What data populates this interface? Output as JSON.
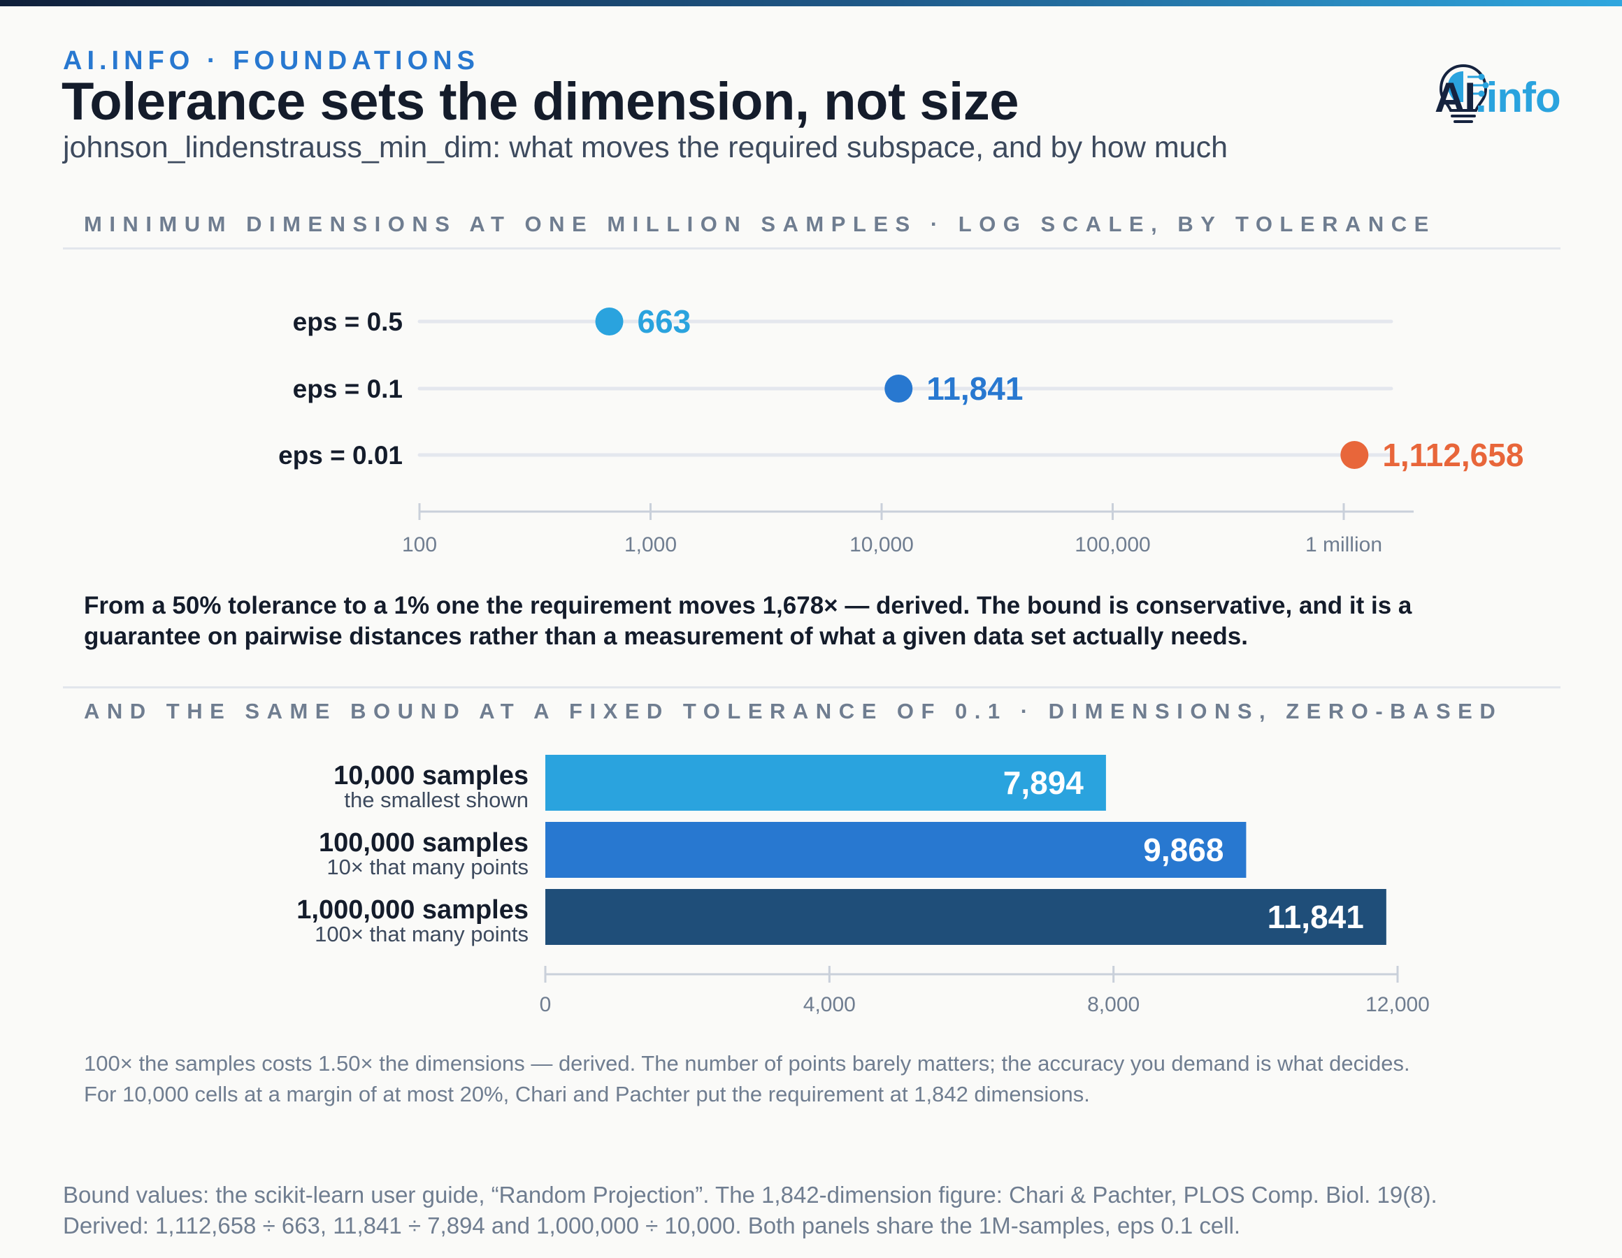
{
  "header": {
    "kicker": "AI.INFO · FOUNDATIONS",
    "title": "Tolerance sets the dimension, not size",
    "subtitle": "johnson_lindenstrauss_min_dim: what moves the required subspace, and by how much"
  },
  "logo": {
    "icon": "brain-lightbulb-icon",
    "text_ai": "AI",
    "text_info": ".info"
  },
  "section1": {
    "heading": "MINIMUM DIMENSIONS AT ONE MILLION SAMPLES · LOG SCALE, BY TOLERANCE",
    "note": "From a 50% tolerance to a 1% one the requirement moves 1,678× — derived. The bound is conservative, and it is a guarantee on pairwise distances rather than a measurement of what a given data set actually needs."
  },
  "section2": {
    "heading": "AND THE SAME BOUND AT A FIXED TOLERANCE OF 0.1 · DIMENSIONS, ZERO-BASED",
    "note": "100× the samples costs 1.50× the dimensions — derived. The number of points barely matters; the accuracy you demand is what decides. For 10,000 cells at a margin of at most 20%, Chari and Pachter put the requirement at 1,842 dimensions."
  },
  "footer": {
    "line1": "Bound values: the scikit-learn user guide, “Random Projection”. The 1,842-dimension figure: Chari & Pachter, PLOS Comp. Biol. 19(8).",
    "line2": "Derived: 1,112,658 ÷ 663, 11,841 ÷ 7,894 and 1,000,000 ÷ 10,000. Both panels share the 1M-samples, eps 0.1 cell."
  },
  "chart_data": [
    {
      "type": "scatter",
      "title": "MINIMUM DIMENSIONS AT ONE MILLION SAMPLES · LOG SCALE, BY TOLERANCE",
      "x_scale": "log",
      "xlim": [
        100,
        2000000
      ],
      "x_ticks": [
        100,
        1000,
        10000,
        100000,
        1000000
      ],
      "x_tick_labels": [
        "100",
        "1,000",
        "10,000",
        "100,000",
        "1 million"
      ],
      "categories": [
        "eps = 0.5",
        "eps = 0.1",
        "eps = 0.01"
      ],
      "values": [
        663,
        11841,
        1112658
      ],
      "value_labels": [
        "663",
        "11,841",
        "1,112,658"
      ],
      "colors": [
        "#2aa3de",
        "#2878d0",
        "#e8663a"
      ],
      "grid": false
    },
    {
      "type": "bar",
      "orientation": "horizontal",
      "title": "AND THE SAME BOUND AT A FIXED TOLERANCE OF 0.1 · DIMENSIONS, ZERO-BASED",
      "xlim": [
        0,
        12000
      ],
      "x_ticks": [
        0,
        4000,
        8000,
        12000
      ],
      "x_tick_labels": [
        "0",
        "4,000",
        "8,000",
        "12,000"
      ],
      "categories": [
        "10,000 samples",
        "100,000 samples",
        "1,000,000 samples"
      ],
      "category_notes": [
        "the smallest shown",
        "10× that many points",
        "100× that many points"
      ],
      "values": [
        7894,
        9868,
        11841
      ],
      "value_labels": [
        "7,894",
        "9,868",
        "11,841"
      ],
      "colors": [
        "#2aa3de",
        "#2878d0",
        "#1f4e79"
      ],
      "grid": false
    }
  ]
}
